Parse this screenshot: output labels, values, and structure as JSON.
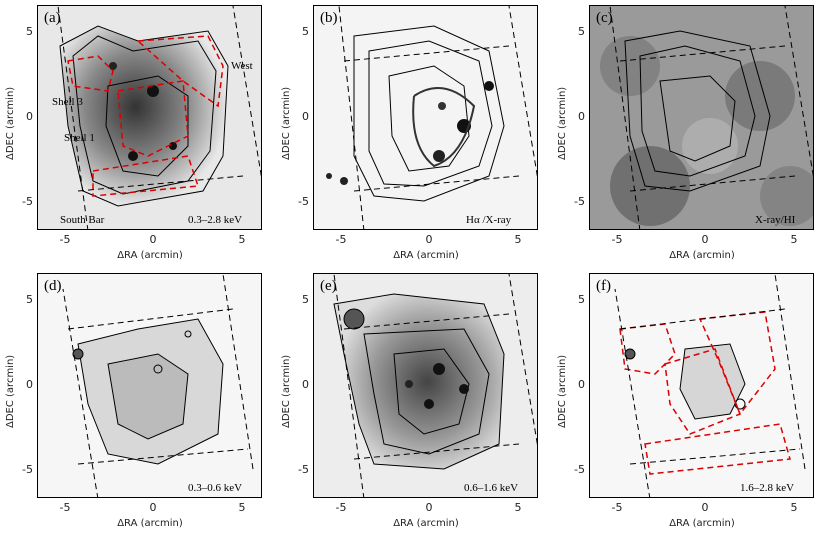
{
  "axes": {
    "xlabel": "ΔRA (arcmin)",
    "ylabel": "ΔDEC (arcmin)",
    "xticks": [
      "-5",
      "0",
      "5"
    ],
    "yticks": [
      "5",
      "0",
      "-5"
    ]
  },
  "panels": [
    {
      "id": "a",
      "label": "(a)",
      "band": "0.3–2.8 keV",
      "annotations": {
        "west": "West",
        "shell3": "Shell 3",
        "shell1": "Shell 1",
        "south_bar": "South Bar"
      }
    },
    {
      "id": "b",
      "label": "(b)",
      "band": "Hα /X-ray"
    },
    {
      "id": "c",
      "label": "(c)",
      "band": "X-ray/HI"
    },
    {
      "id": "d",
      "label": "(d)",
      "band": "0.3–0.6 keV"
    },
    {
      "id": "e",
      "label": "(e)",
      "band": "0.6–1.6 keV"
    },
    {
      "id": "f",
      "label": "(f)",
      "band": "1.6–2.8 keV"
    }
  ]
}
